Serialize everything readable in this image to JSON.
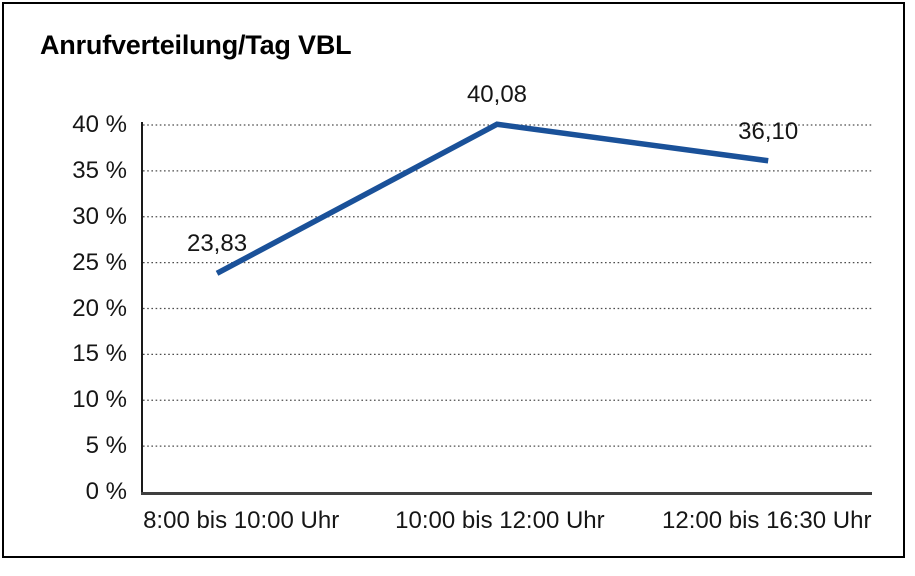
{
  "title": "Anrufverteilung/Tag VBL",
  "chart_data": {
    "type": "line",
    "title": "Anrufverteilung/Tag VBL",
    "categories": [
      "8:00 bis 10:00 Uhr",
      "10:00 bis 12:00 Uhr",
      "12:00 bis 16:30 Uhr"
    ],
    "values": [
      23.83,
      40.08,
      36.1
    ],
    "data_labels": [
      "23,83",
      "40,08",
      "36,10"
    ],
    "ytick_labels": [
      "0 %",
      "5 %",
      "10 %",
      "15 %",
      "20 %",
      "25 %",
      "30 %",
      "35 %",
      "40 %"
    ],
    "ytick_step": 5,
    "ylim": [
      0,
      40
    ],
    "xlabel": "",
    "ylabel": "",
    "grid": "horizontal-dotted",
    "legend": "none",
    "line_color": "#1A5199",
    "grid_color": "#4D4D4D",
    "axis_color": "#3F3F3F",
    "yaxis_color": "#1A1A1A",
    "text_color": "#161616",
    "frame_color": "#000000",
    "background": "#FFFFFF"
  }
}
